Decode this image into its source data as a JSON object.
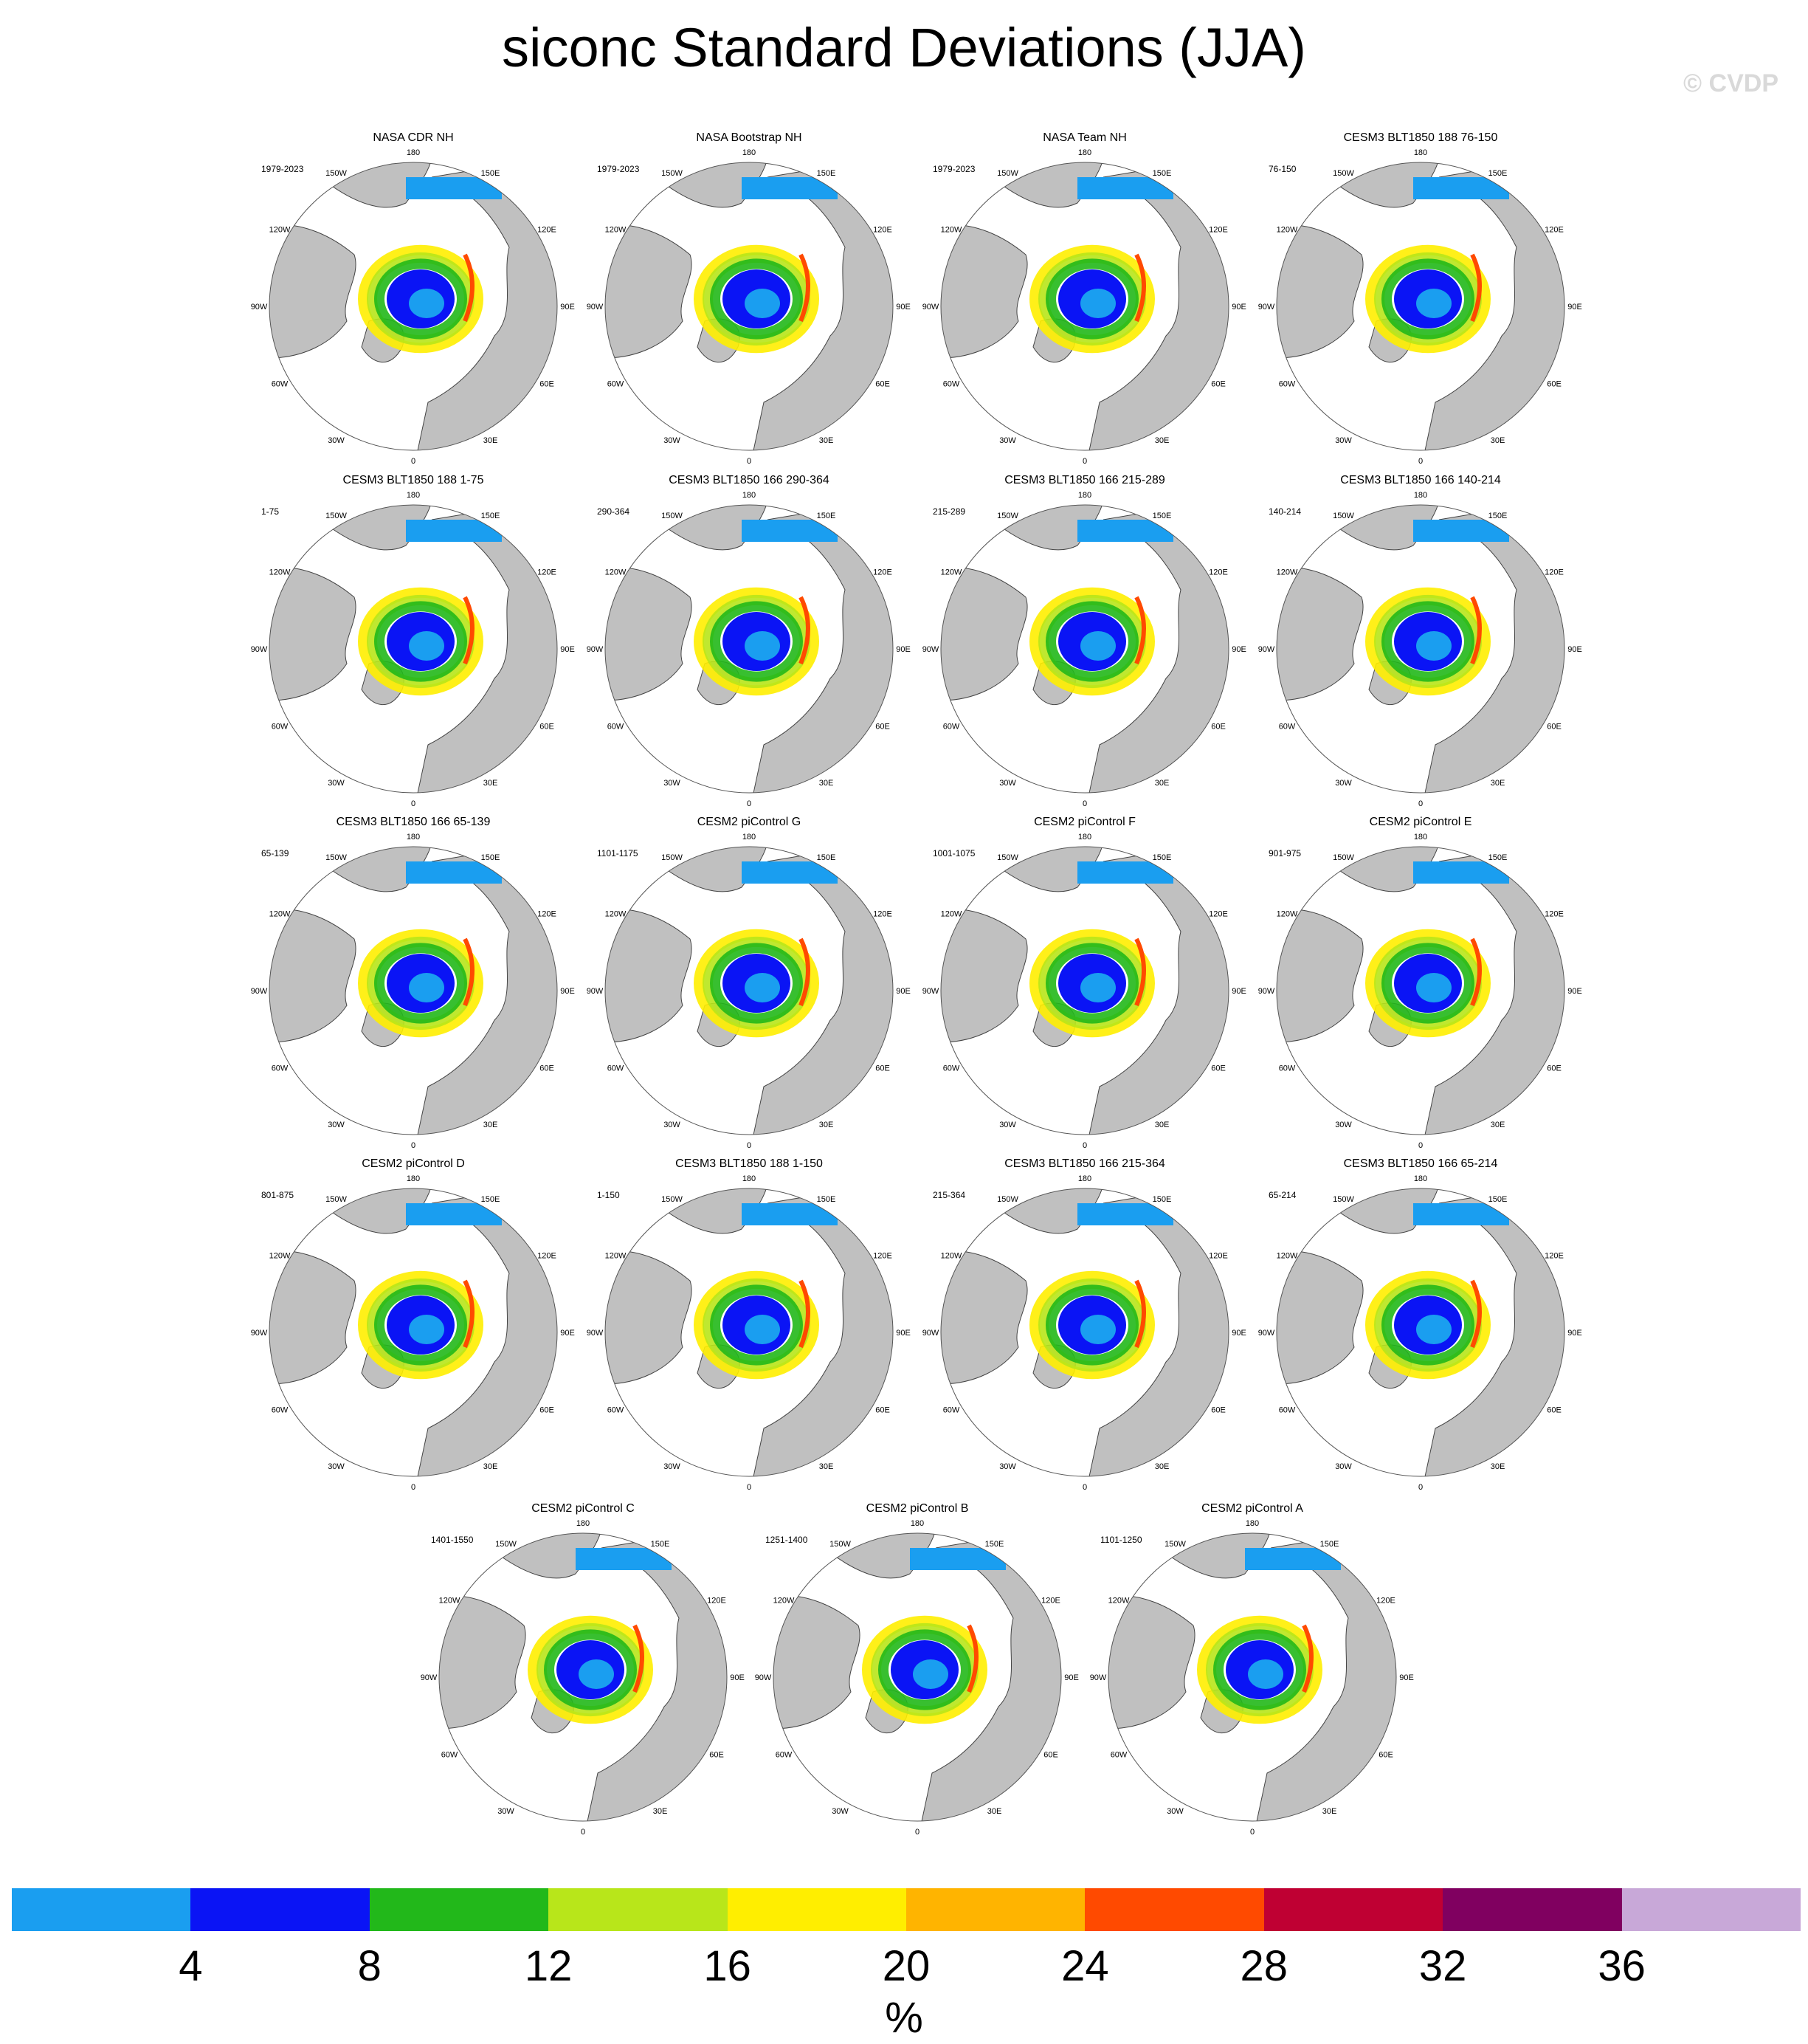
{
  "title": "siconc Standard Deviations (JJA)",
  "credit": "© CVDP",
  "panels": [
    {
      "title": "NASA CDR NH",
      "years": "1979-2023"
    },
    {
      "title": "NASA Bootstrap NH",
      "years": "1979-2023"
    },
    {
      "title": "NASA Team NH",
      "years": "1979-2023"
    },
    {
      "title": "CESM3 BLT1850 188 76-150",
      "years": "76-150"
    },
    {
      "title": "CESM3 BLT1850 188 1-75",
      "years": "1-75"
    },
    {
      "title": "CESM3 BLT1850 166 290-364",
      "years": "290-364"
    },
    {
      "title": "CESM3 BLT1850 166 215-289",
      "years": "215-289"
    },
    {
      "title": "CESM3 BLT1850 166 140-214",
      "years": "140-214"
    },
    {
      "title": "CESM3 BLT1850 166 65-139",
      "years": "65-139"
    },
    {
      "title": "CESM2 piControl G",
      "years": "1101-1175"
    },
    {
      "title": "CESM2 piControl F",
      "years": "1001-1075"
    },
    {
      "title": "CESM2 piControl E",
      "years": "901-975"
    },
    {
      "title": "CESM2 piControl D",
      "years": "801-875"
    },
    {
      "title": "CESM3 BLT1850 188 1-150",
      "years": "1-150"
    },
    {
      "title": "CESM3 BLT1850 166 215-364",
      "years": "215-364"
    },
    {
      "title": "CESM3 BLT1850 166 65-214",
      "years": "65-214"
    },
    {
      "title": "CESM2 piControl C",
      "years": "1401-1550"
    },
    {
      "title": "CESM2 piControl B",
      "years": "1251-1400"
    },
    {
      "title": "CESM2 piControl A",
      "years": "1101-1250"
    }
  ],
  "lon_labels": {
    "top": "180",
    "bottom": "0",
    "left": "90W",
    "right": "90E",
    "upper_left_outer": "150W",
    "upper_left_inner": "120W",
    "upper_right_outer": "150E",
    "upper_right_inner": "120E",
    "lower_left_inner": "60W",
    "lower_left_outer": "30W",
    "lower_right_inner": "60E",
    "lower_right_outer": "30E"
  },
  "colorbar": {
    "colors": [
      "#1a9ef0",
      "#0a14f5",
      "#22b81a",
      "#b8e61a",
      "#ffee00",
      "#ffb400",
      "#ff4a00",
      "#bf0033",
      "#800060",
      "#c8a8d8"
    ],
    "labels": [
      "4",
      "8",
      "12",
      "16",
      "20",
      "24",
      "28",
      "32",
      "36"
    ],
    "units": "%"
  },
  "colors": {
    "land": "#c0c0c0",
    "ocean": "#ffffff",
    "coast": "#444444"
  }
}
